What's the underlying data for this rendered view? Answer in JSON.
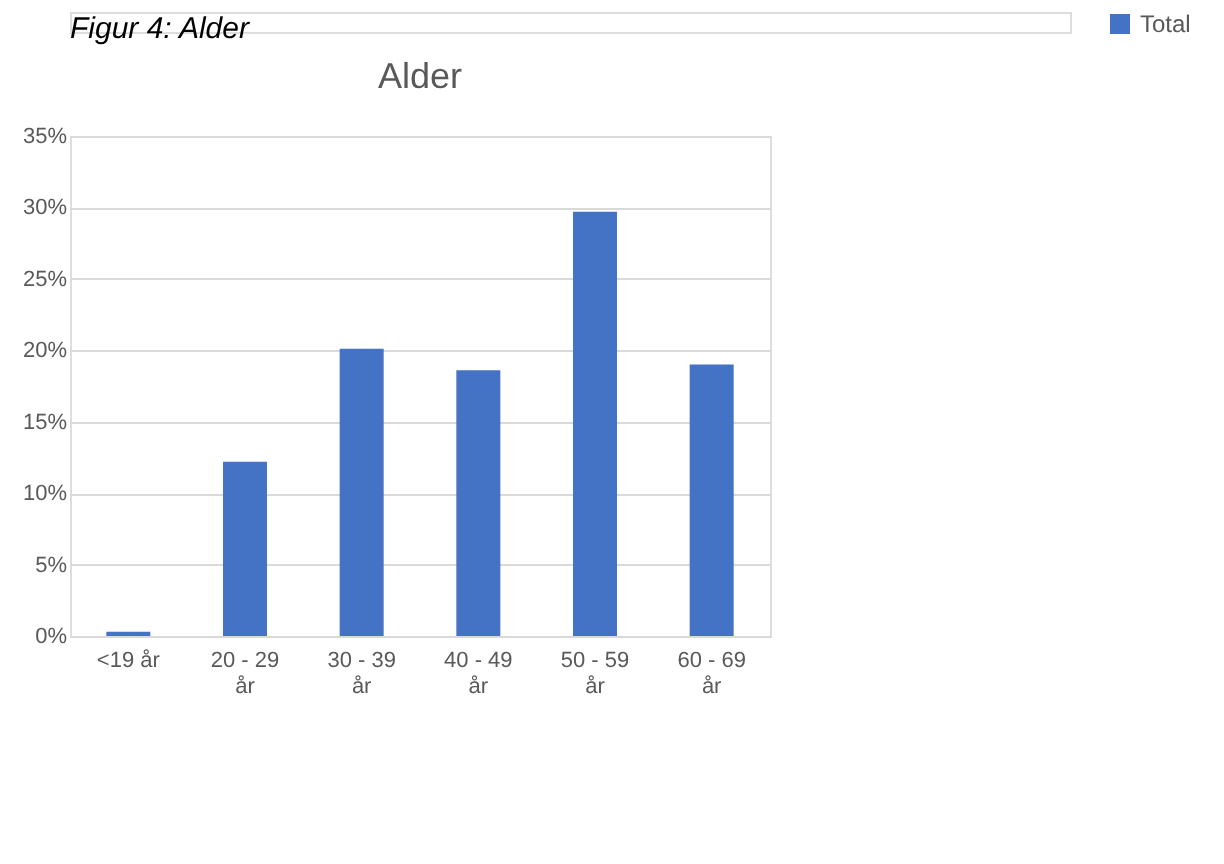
{
  "chart_data": {
    "type": "bar",
    "title": "Alder",
    "annotations": [
      "Figur 4: Alder"
    ],
    "categories": [
      "<19 år",
      "20 - 29 år",
      "30 - 39 år",
      "40 - 49 år",
      "50 - 59 år",
      "60 - 69 år"
    ],
    "series": [
      {
        "name": "Total",
        "color": "#4472c4",
        "values": [
          0.3,
          12.2,
          20.1,
          18.6,
          29.7,
          19.0
        ]
      }
    ],
    "ylim": [
      0,
      35
    ],
    "yticks": [
      {
        "value": 0,
        "label": "0%"
      },
      {
        "value": 5,
        "label": "5%"
      },
      {
        "value": 10,
        "label": "10%"
      },
      {
        "value": 15,
        "label": "15%"
      },
      {
        "value": 20,
        "label": "20%"
      },
      {
        "value": 25,
        "label": "25%"
      },
      {
        "value": 30,
        "label": "30%"
      },
      {
        "value": 35,
        "label": "35%"
      }
    ],
    "grid": "y",
    "legend": "right"
  }
}
